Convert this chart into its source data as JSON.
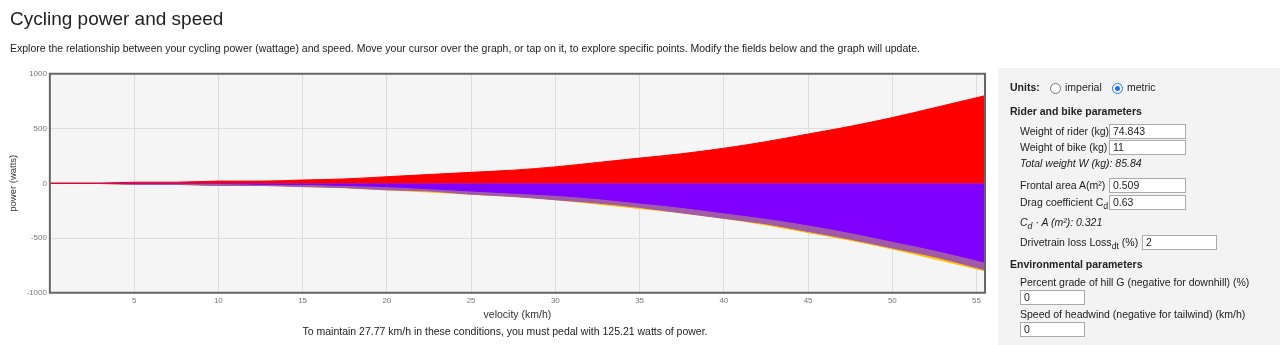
{
  "chart_data": [
    {
      "type": "area",
      "title": "Cycling power and speed",
      "subtitle": "Explore the relationship between your cycling power (wattage) and speed. Move your cursor over the graph, or tap on it, to explore specific points. Modify the fields below and the graph will update.",
      "xlabel": "velocity (km/h)",
      "ylabel": "power (watts)",
      "grid": true,
      "legend": false,
      "marker": "none",
      "x": [
        0,
        2.5,
        5,
        7.5,
        10,
        12.5,
        15,
        17.5,
        20,
        22.5,
        25,
        27.5,
        30,
        32.5,
        35,
        37.5,
        40,
        42.5,
        45,
        47.5,
        50,
        52.5,
        55.5
      ],
      "xlim": [
        0,
        55.5
      ],
      "xticks": [
        5,
        10,
        15,
        20,
        25,
        30,
        35,
        40,
        45,
        50,
        55
      ],
      "ylim": [
        -1000,
        1000
      ],
      "yticks": [
        -1000,
        -500,
        0,
        500,
        1000
      ],
      "series": [
        {
          "color": "#ff0000",
          "values": [
            0,
            0,
            10,
            10,
            20,
            20,
            30,
            40,
            60,
            80,
            100,
            120,
            150,
            190,
            230,
            270,
            320,
            380,
            450,
            520,
            600,
            690,
            800
          ]
        },
        {
          "color": "#8000ff",
          "values": [
            0,
            0,
            0,
            0,
            0,
            -10,
            -10,
            -20,
            -30,
            -50,
            -70,
            -90,
            -110,
            -140,
            -180,
            -220,
            -270,
            -320,
            -380,
            -450,
            -530,
            -610,
            -720
          ]
        },
        {
          "color": "#a05aa8",
          "values": [
            0,
            0,
            -10,
            -10,
            -20,
            -20,
            -30,
            -40,
            -60,
            -70,
            -100,
            -120,
            -150,
            -180,
            -220,
            -270,
            -320,
            -370,
            -440,
            -510,
            -590,
            -670,
            -790
          ]
        },
        {
          "color": "#ffc000",
          "values": [
            0,
            0,
            -10,
            -10,
            -20,
            -20,
            -30,
            -40,
            -60,
            -80,
            -100,
            -120,
            -150,
            -190,
            -230,
            -270,
            -320,
            -380,
            -450,
            -520,
            -600,
            -690,
            -800
          ]
        }
      ],
      "annotations": [
        "To maintain 27.77 km/h in these conditions, you must pedal with 125.21 watts of power."
      ]
    },
    {
      "type": "other",
      "annotations": [
        "Units:",
        "imperial",
        "metric",
        "Rider and bike parameters",
        "Weight of rider (kg)",
        "74.843",
        "Weight of bike (kg)",
        "11",
        "Total weight W (kg): 85.84",
        "Frontal area A(m²)",
        "0.509",
        "Drag coefficient C$_{d}$",
        "0.63",
        "C$_{d}$ · A (m²): 0.321",
        "Drivetrain loss Loss$_{dt}$ (%)",
        "2",
        "Environmental parameters",
        "Percent grade of hill G (negative for downhill) (%)",
        "0",
        "Speed of headwind (negative for tailwind) (km/h)",
        "0"
      ]
    }
  ]
}
